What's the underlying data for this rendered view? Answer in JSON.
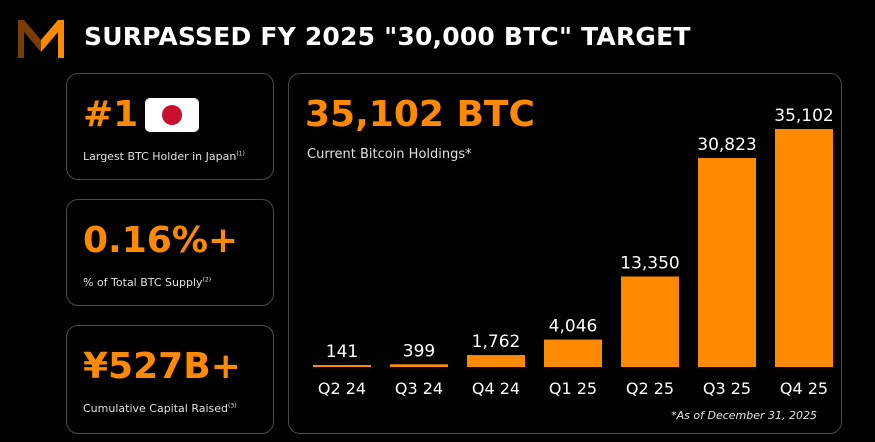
{
  "header": {
    "title": "SURPASSED FY 2025 \"30,000 BTC\" TARGET"
  },
  "logo": {
    "icon": "metaplanet-m-logo-icon"
  },
  "stats": [
    {
      "value": "#1",
      "label": "Largest BTC Holder in Japan",
      "note": "(1)",
      "icon": "japan-flag-icon"
    },
    {
      "value": "0.16%+",
      "label": "% of Total BTC Supply",
      "note": "(2)"
    },
    {
      "value": "¥527B+",
      "label": "Cumulative Capital Raised",
      "note": "(3)"
    }
  ],
  "holdings": {
    "value": "35,102 BTC",
    "label": "Current Bitcoin Holdings*"
  },
  "footnote": "*As of December 31, 2025",
  "colors": {
    "accent": "#ff8a00",
    "background": "#000000",
    "border": "#4a4a4a"
  },
  "chart_data": {
    "type": "bar",
    "categories": [
      "Q2 24",
      "Q3 24",
      "Q4 24",
      "Q1 25",
      "Q2 25",
      "Q3 25",
      "Q4 25"
    ],
    "values": [
      141,
      399,
      1762,
      4046,
      13350,
      30823,
      35102
    ],
    "data_labels": [
      "141",
      "399",
      "1,762",
      "4,046",
      "13,350",
      "30,823",
      "35,102"
    ],
    "title": "",
    "xlabel": "",
    "ylabel": "",
    "ylim": [
      0,
      35102
    ],
    "grid": false
  }
}
